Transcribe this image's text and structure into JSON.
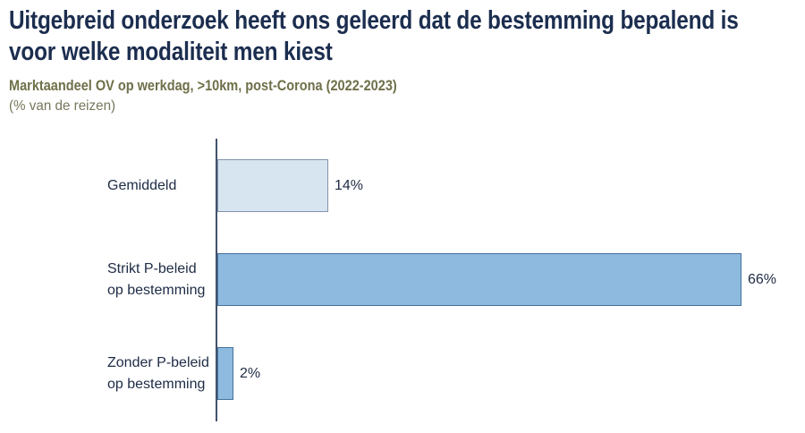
{
  "header": {
    "title": "Uitgebreid onderzoek heeft ons geleerd dat de bestemming bepalend is\nvoor welke modaliteit men kiest",
    "subtitle": "Marktaandeel OV op werkdag, >10km, post-Corona (2022-2023)",
    "unit_note": "(% van de reizen)"
  },
  "colors": {
    "title_text": "#1c2e4f",
    "subtitle_text": "#6f6f4a",
    "note_text": "#76765c",
    "chart_text": "#1d2b45",
    "axis_line": "#42536b",
    "bar_light_fill": "#d7e5f1",
    "bar_light_border": "#8093a9",
    "bar_blue_fill": "#8dbade",
    "bar_blue_border": "#45719c"
  },
  "chart_data": {
    "type": "bar",
    "orientation": "horizontal",
    "title": "Uitgebreid onderzoek heeft ons geleerd dat de bestemming bepalend is voor welke modaliteit men kiest",
    "subtitle": "Marktaandeel OV op werkdag, >10km, post-Corona (2022-2023)",
    "unit_note": "(% van de reizen)",
    "xlabel": "",
    "ylabel": "",
    "grid": false,
    "legend": false,
    "axis_ticks_visible": false,
    "categories": [
      "Gemiddeld",
      "Strikt P-beleid\nop bestemming",
      "Zonder P-beleid\nop bestemming"
    ],
    "values": [
      14,
      66,
      2
    ],
    "value_labels": [
      "14%",
      "66%",
      "2%"
    ],
    "bars": [
      {
        "category": "Gemiddeld",
        "value": 14,
        "label": "14%",
        "fill": "#d7e5f1",
        "border": "#8093a9"
      },
      {
        "category": "Strikt P-beleid\nop bestemming",
        "value": 66,
        "label": "66%",
        "fill": "#8dbade",
        "border": "#45719c"
      },
      {
        "category": "Zonder P-beleid\nop bestemming",
        "value": 2,
        "label": "2%",
        "fill": "#8dbade",
        "border": "#45719c"
      }
    ]
  }
}
